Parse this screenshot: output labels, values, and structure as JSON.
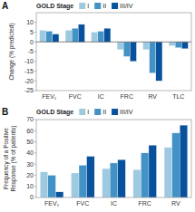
{
  "chart_data": [
    {
      "type": "bar",
      "title": "A",
      "categories": [
        "FEV₁",
        "FVC",
        "IC",
        "FRC",
        "RV",
        "TLC"
      ],
      "series": [
        {
          "name": "I",
          "color": "#9ecae1",
          "values": [
            6,
            6,
            5,
            -4,
            -4,
            -2
          ]
        },
        {
          "name": "II",
          "color": "#4292c6",
          "values": [
            5.5,
            7,
            5.5,
            -7.5,
            -16,
            -3
          ]
        },
        {
          "name": "III/IV",
          "color": "#08519c",
          "values": [
            4,
            9,
            7,
            -10,
            -20,
            -3.5
          ]
        }
      ],
      "y_label": "Change (% predicted)",
      "ylim": [
        -25,
        15
      ],
      "yticks": [
        -25,
        -20,
        -15,
        -10,
        -5,
        0,
        5,
        10
      ],
      "legend_title": "GOLD Stage",
      "legend": "top",
      "grid": false
    },
    {
      "type": "bar",
      "title": "B",
      "categories": [
        "FEV₁",
        "FVC",
        "IC",
        "FRC",
        "RV"
      ],
      "series": [
        {
          "name": "I",
          "color": "#9ecae1",
          "values": [
            23,
            22,
            26,
            25,
            45
          ]
        },
        {
          "name": "II",
          "color": "#4292c6",
          "values": [
            20,
            29,
            31,
            40,
            58
          ]
        },
        {
          "name": "III/IV",
          "color": "#08519c",
          "values": [
            5,
            37,
            34,
            47,
            65
          ]
        }
      ],
      "y_label": "Frequency of a Positive\nResponse (% of patients)",
      "ylim": [
        0,
        70
      ],
      "yticks": [
        0,
        10,
        20,
        30,
        40,
        50,
        60,
        70
      ],
      "legend_title": "GOLD Stage",
      "legend": "top",
      "grid": false
    }
  ]
}
